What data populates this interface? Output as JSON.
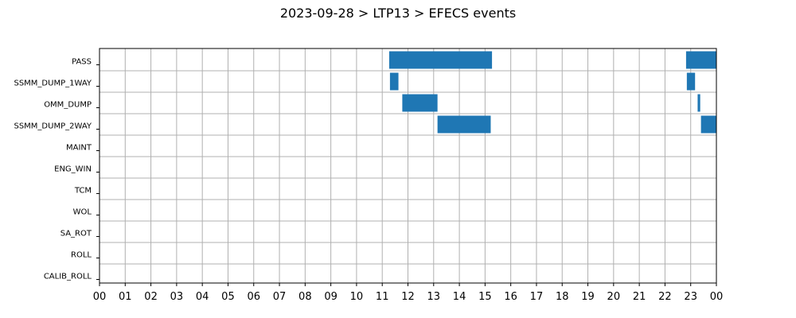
{
  "chart_data": {
    "type": "gantt",
    "title": "2023-09-28 > LTP13 > EFECS events",
    "xlabel": "",
    "ylabel": "",
    "x_unit": "hour of day",
    "xlim": [
      0,
      24
    ],
    "x_ticks": [
      0,
      1,
      2,
      3,
      4,
      5,
      6,
      7,
      8,
      9,
      10,
      11,
      12,
      13,
      14,
      15,
      16,
      17,
      18,
      19,
      20,
      21,
      22,
      23,
      24
    ],
    "x_tick_labels": [
      "00",
      "01",
      "02",
      "03",
      "04",
      "05",
      "06",
      "07",
      "08",
      "09",
      "10",
      "11",
      "12",
      "13",
      "14",
      "15",
      "16",
      "17",
      "18",
      "19",
      "20",
      "21",
      "22",
      "23",
      "00"
    ],
    "grid": true,
    "bar_color": "#1f77b4",
    "categories": [
      "PASS",
      "SSMM_DUMP_1WAY",
      "OMM_DUMP",
      "SSMM_DUMP_2WAY",
      "MAINT",
      "ENG_WIN",
      "TCM",
      "WOL",
      "SA_ROT",
      "ROLL",
      "CALIB_ROLL"
    ],
    "events": [
      {
        "category": "PASS",
        "start": 11.27,
        "end": 15.27
      },
      {
        "category": "PASS",
        "start": 22.82,
        "end": 24.0
      },
      {
        "category": "SSMM_DUMP_1WAY",
        "start": 11.3,
        "end": 11.63
      },
      {
        "category": "SSMM_DUMP_1WAY",
        "start": 22.85,
        "end": 23.17
      },
      {
        "category": "OMM_DUMP",
        "start": 11.78,
        "end": 13.15
      },
      {
        "category": "OMM_DUMP",
        "start": 23.27,
        "end": 23.37
      },
      {
        "category": "SSMM_DUMP_2WAY",
        "start": 13.15,
        "end": 15.22
      },
      {
        "category": "SSMM_DUMP_2WAY",
        "start": 23.4,
        "end": 24.0
      }
    ]
  }
}
